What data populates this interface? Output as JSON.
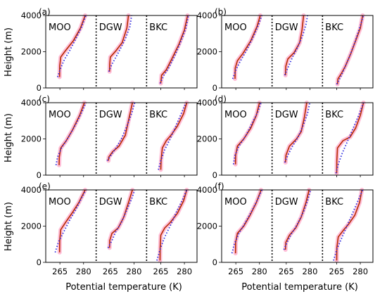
{
  "colors": {
    "model_line": "#b52a00",
    "observed_line": "#2a2ae0",
    "spread_band": "#ffb3d0",
    "divider": "#000000"
  },
  "chart_data": {
    "type": "line",
    "layout": "3x2 panel grid; each panel split into three stacked profiles separated by dotted vertical lines",
    "ylabel": "Height (m)",
    "xlabel": "Potential temperature (K)",
    "yticks": [
      0,
      2000,
      4000
    ],
    "ylim": [
      0,
      4000
    ],
    "xticks": [
      265,
      280
    ],
    "xlim": [
      256,
      288
    ],
    "section_labels": [
      "MOO",
      "DGW",
      "BKC"
    ],
    "series_styles": [
      {
        "key": "model",
        "style": "solid dark red"
      },
      {
        "key": "obs",
        "style": "dotted blue"
      },
      {
        "key": "spread",
        "style": "thick light pink"
      }
    ],
    "panels": [
      {
        "label": "(a)",
        "sections": [
          {
            "name": "MOO",
            "model": {
              "theta": [
                264.8,
                264.9,
                265.5,
                268.0,
                273.5,
                278.0,
                281.0
              ],
              "z": [
                600,
                1200,
                1700,
                2000,
                2600,
                3300,
                4000
              ]
            },
            "obs": {
              "theta": [
                263.5,
                265.5,
                268.0,
                271.5,
                275.0,
                278.5,
                281.5
              ],
              "z": [
                600,
                1100,
                1600,
                2100,
                2700,
                3300,
                4000
              ]
            }
          },
          {
            "name": "DGW",
            "model": {
              "theta": [
                264.5,
                264.6,
                265.0,
                268.5,
                272.5,
                275.5,
                276.5
              ],
              "z": [
                900,
                1300,
                1700,
                2050,
                2500,
                3300,
                4000
              ]
            },
            "obs": {
              "theta": [
                264.0,
                266.0,
                268.5,
                271.0,
                274.5,
                277.5,
                278.5
              ],
              "z": [
                900,
                1300,
                1700,
                2100,
                2700,
                3400,
                4000
              ]
            }
          },
          {
            "name": "BKC",
            "model": {
              "theta": [
                265.0,
                265.5,
                268.5,
                272.0,
                276.5,
                280.0,
                282.0
              ],
              "z": [
                250,
                700,
                1000,
                1600,
                2400,
                3200,
                4000
              ]
            },
            "obs": {
              "theta": [
                264.5,
                267.0,
                270.0,
                273.5,
                277.5,
                281.0,
                282.5
              ],
              "z": [
                250,
                700,
                1100,
                1700,
                2500,
                3300,
                4000
              ]
            }
          }
        ]
      },
      {
        "label": "(b)",
        "sections": [
          {
            "name": "MOO",
            "model": {
              "theta": [
                264.5,
                264.6,
                266.0,
                269.5,
                274.5,
                278.5,
                280.5
              ],
              "z": [
                500,
                1100,
                1500,
                1900,
                2600,
                3400,
                4000
              ]
            },
            "obs": {
              "theta": [
                263.0,
                265.0,
                268.0,
                272.0,
                276.0,
                279.5,
                281.5
              ],
              "z": [
                500,
                1000,
                1500,
                2100,
                2800,
                3500,
                4000
              ]
            }
          },
          {
            "name": "DGW",
            "model": {
              "theta": [
                264.5,
                264.7,
                266.0,
                270.0,
                273.5,
                275.0,
                276.0
              ],
              "z": [
                700,
                1200,
                1600,
                1950,
                2500,
                3200,
                4000
              ]
            },
            "obs": {
              "theta": [
                264.0,
                266.5,
                269.0,
                272.0,
                275.5,
                277.5,
                278.5
              ],
              "z": [
                700,
                1200,
                1700,
                2200,
                2900,
                3500,
                4000
              ]
            }
          },
          {
            "name": "BKC",
            "model": {
              "theta": [
                265.5,
                265.8,
                268.0,
                270.5,
                274.0,
                277.0,
                280.0,
                281.5
              ],
              "z": [
                200,
                500,
                800,
                1200,
                1900,
                2600,
                3300,
                4000
              ]
            },
            "obs": {
              "theta": [
                265.0,
                267.5,
                270.0,
                273.0,
                276.5,
                279.5,
                282.0
              ],
              "z": [
                200,
                600,
                1100,
                1700,
                2500,
                3300,
                4000
              ]
            }
          }
        ]
      },
      {
        "label": "(c)",
        "sections": [
          {
            "name": "MOO",
            "model": {
              "theta": [
                264.5,
                264.6,
                265.5,
                269.0,
                273.0,
                277.5,
                280.5
              ],
              "z": [
                550,
                1000,
                1500,
                1900,
                2500,
                3300,
                4000
              ]
            },
            "obs": {
              "theta": [
                262.5,
                263.5,
                266.0,
                270.5,
                275.0,
                279.0,
                281.5
              ],
              "z": [
                550,
                1000,
                1500,
                2100,
                2800,
                3500,
                4000
              ]
            }
          },
          {
            "name": "DGW",
            "model": {
              "theta": [
                263.8,
                264.0,
                266.5,
                270.5,
                274.5,
                277.0,
                279.0
              ],
              "z": [
                800,
                1000,
                1300,
                1600,
                2200,
                3200,
                4000
              ]
            },
            "obs": {
              "theta": [
                263.0,
                265.5,
                268.5,
                272.0,
                275.5,
                278.5,
                280.5
              ],
              "z": [
                800,
                1100,
                1500,
                2000,
                2700,
                3400,
                4000
              ]
            }
          },
          {
            "name": "BKC",
            "model": {
              "theta": [
                265.0,
                265.2,
                266.0,
                268.5,
                271.5,
                275.5,
                279.5,
                281.5
              ],
              "z": [
                300,
                800,
                1500,
                1900,
                2200,
                2700,
                3400,
                4000
              ]
            },
            "obs": {
              "theta": [
                263.5,
                265.0,
                267.5,
                271.0,
                274.5,
                278.0,
                281.0
              ],
              "z": [
                300,
                800,
                1400,
                2000,
                2700,
                3400,
                4000
              ]
            }
          }
        ]
      },
      {
        "label": "(d)",
        "sections": [
          {
            "name": "MOO",
            "model": {
              "theta": [
                264.8,
                264.9,
                266.0,
                270.0,
                274.5,
                278.0,
                280.0
              ],
              "z": [
                600,
                1100,
                1600,
                2000,
                2600,
                3300,
                4000
              ]
            },
            "obs": {
              "theta": [
                263.5,
                264.5,
                267.0,
                271.5,
                275.5,
                279.0,
                281.0
              ],
              "z": [
                600,
                1100,
                1600,
                2200,
                2900,
                3500,
                4000
              ]
            }
          },
          {
            "name": "DGW",
            "model": {
              "theta": [
                264.5,
                264.8,
                267.0,
                271.5,
                274.5,
                276.5,
                278.0
              ],
              "z": [
                700,
                1100,
                1600,
                2000,
                2400,
                3200,
                4000
              ]
            },
            "obs": {
              "theta": [
                264.0,
                266.0,
                269.0,
                272.5,
                276.0,
                278.5,
                280.0
              ],
              "z": [
                700,
                1100,
                1600,
                2100,
                2800,
                3400,
                4000
              ]
            }
          },
          {
            "name": "BKC",
            "model": {
              "theta": [
                265.0,
                265.1,
                265.5,
                269.0,
                273.5,
                277.0,
                280.0,
                282.0
              ],
              "z": [
                100,
                800,
                1500,
                1900,
                2100,
                2600,
                3300,
                4000
              ]
            },
            "obs": {
              "theta": [
                264.5,
                266.0,
                268.5,
                272.0,
                275.5,
                279.0,
                282.0
              ],
              "z": [
                100,
                600,
                1200,
                1900,
                2600,
                3300,
                4000
              ]
            }
          }
        ]
      },
      {
        "label": "(e)",
        "sections": [
          {
            "name": "MOO",
            "model": {
              "theta": [
                264.8,
                264.9,
                265.5,
                268.5,
                272.5,
                277.0,
                281.0
              ],
              "z": [
                550,
                1200,
                1800,
                2200,
                2700,
                3300,
                4000
              ]
            },
            "obs": {
              "theta": [
                262.0,
                264.0,
                267.5,
                271.0,
                275.0,
                278.5,
                281.5
              ],
              "z": [
                550,
                1100,
                1700,
                2300,
                2900,
                3500,
                4000
              ]
            }
          },
          {
            "name": "DGW",
            "model": {
              "theta": [
                264.5,
                264.6,
                266.0,
                270.0,
                273.5,
                276.5,
                279.0
              ],
              "z": [
                800,
                1200,
                1600,
                1900,
                2500,
                3300,
                4000
              ]
            },
            "obs": {
              "theta": [
                263.5,
                266.0,
                268.5,
                272.0,
                275.5,
                278.5,
                280.5
              ],
              "z": [
                800,
                1200,
                1700,
                2200,
                2900,
                3500,
                4000
              ]
            }
          },
          {
            "name": "BKC",
            "model": {
              "theta": [
                264.5,
                264.6,
                265.0,
                267.5,
                271.0,
                275.5,
                279.5,
                281.5
              ],
              "z": [
                100,
                800,
                1500,
                1900,
                2200,
                2700,
                3400,
                4000
              ]
            },
            "obs": {
              "theta": [
                262.5,
                264.5,
                267.5,
                271.5,
                275.0,
                278.5,
                281.5
              ],
              "z": [
                100,
                700,
                1400,
                2100,
                2800,
                3400,
                4000
              ]
            }
          }
        ]
      },
      {
        "label": "(f)",
        "sections": [
          {
            "name": "MOO",
            "model": {
              "theta": [
                264.8,
                264.9,
                266.0,
                270.0,
                274.0,
                278.0,
                281.0
              ],
              "z": [
                500,
                1100,
                1600,
                2000,
                2600,
                3300,
                4000
              ]
            },
            "obs": {
              "theta": [
                262.5,
                264.0,
                267.0,
                271.0,
                275.5,
                279.0,
                281.5
              ],
              "z": [
                500,
                1000,
                1600,
                2200,
                2900,
                3500,
                4000
              ]
            }
          },
          {
            "name": "DGW",
            "model": {
              "theta": [
                264.5,
                264.7,
                267.0,
                271.0,
                274.5,
                277.5,
                279.5
              ],
              "z": [
                700,
                1100,
                1500,
                1900,
                2500,
                3300,
                4000
              ]
            },
            "obs": {
              "theta": [
                263.5,
                265.5,
                268.5,
                272.0,
                276.0,
                278.5,
                280.5
              ],
              "z": [
                700,
                1100,
                1600,
                2100,
                2800,
                3400,
                4000
              ]
            }
          },
          {
            "name": "BKC",
            "model": {
              "theta": [
                265.0,
                265.1,
                266.0,
                269.5,
                272.5,
                276.5,
                279.5,
                281.0
              ],
              "z": [
                100,
                800,
                1400,
                1800,
                2100,
                2600,
                3300,
                4000
              ]
            },
            "obs": {
              "theta": [
                263.0,
                265.0,
                268.0,
                271.5,
                275.0,
                278.5,
                281.5
              ],
              "z": [
                100,
                700,
                1300,
                2000,
                2700,
                3400,
                4000
              ]
            }
          }
        ]
      }
    ]
  }
}
